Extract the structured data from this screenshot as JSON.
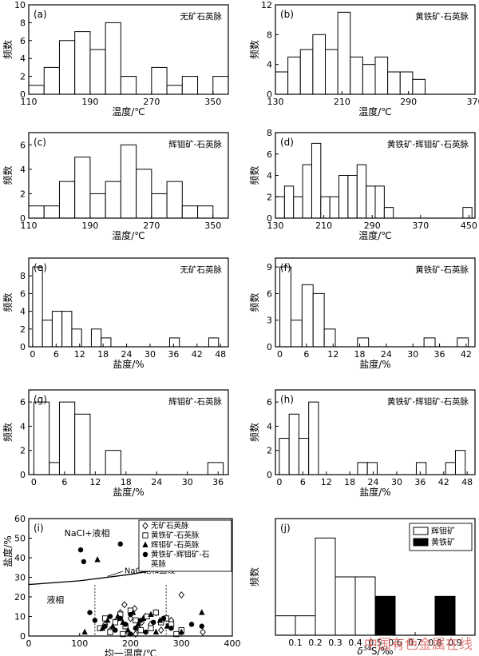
{
  "watermark": "中国有色金属在线",
  "chart_data": [
    {
      "panel": "(a)",
      "type": "bar",
      "title": "无矿石英脉",
      "xlabel": "温度/℃",
      "ylabel": "频数",
      "xlim": [
        110,
        370
      ],
      "ylim": [
        0,
        10
      ],
      "xticks": [
        110,
        190,
        270,
        350
      ],
      "yticks": [
        0,
        2,
        4,
        6,
        8,
        10
      ],
      "bins": [
        {
          "x0": 110,
          "x1": 130,
          "count": 1
        },
        {
          "x0": 130,
          "x1": 150,
          "count": 3
        },
        {
          "x0": 150,
          "x1": 170,
          "count": 6
        },
        {
          "x0": 170,
          "x1": 190,
          "count": 7
        },
        {
          "x0": 190,
          "x1": 210,
          "count": 5
        },
        {
          "x0": 210,
          "x1": 230,
          "count": 8
        },
        {
          "x0": 230,
          "x1": 250,
          "count": 2
        },
        {
          "x0": 270,
          "x1": 290,
          "count": 3
        },
        {
          "x0": 290,
          "x1": 310,
          "count": 1
        },
        {
          "x0": 310,
          "x1": 330,
          "count": 2
        },
        {
          "x0": 350,
          "x1": 370,
          "count": 2
        }
      ]
    },
    {
      "panel": "(b)",
      "type": "bar",
      "title": "黄铁矿-石英脉",
      "xlabel": "温度/℃",
      "ylabel": "频数",
      "xlim": [
        130,
        370
      ],
      "ylim": [
        0,
        12
      ],
      "xticks": [
        130,
        210,
        290,
        370
      ],
      "yticks": [
        0,
        4,
        8,
        12
      ],
      "bins": [
        {
          "x0": 130,
          "x1": 145,
          "count": 3
        },
        {
          "x0": 145,
          "x1": 160,
          "count": 5
        },
        {
          "x0": 160,
          "x1": 175,
          "count": 6
        },
        {
          "x0": 175,
          "x1": 190,
          "count": 8
        },
        {
          "x0": 190,
          "x1": 205,
          "count": 6
        },
        {
          "x0": 205,
          "x1": 220,
          "count": 11
        },
        {
          "x0": 220,
          "x1": 235,
          "count": 5
        },
        {
          "x0": 235,
          "x1": 250,
          "count": 4
        },
        {
          "x0": 250,
          "x1": 265,
          "count": 5
        },
        {
          "x0": 265,
          "x1": 280,
          "count": 3
        },
        {
          "x0": 280,
          "x1": 295,
          "count": 3
        },
        {
          "x0": 295,
          "x1": 310,
          "count": 2
        }
      ]
    },
    {
      "panel": "(c)",
      "type": "bar",
      "title": "辉钼矿-石英脉",
      "xlabel": "温度/℃",
      "ylabel": "频数",
      "xlim": [
        110,
        370
      ],
      "ylim": [
        0,
        7
      ],
      "xticks": [
        110,
        190,
        270,
        350
      ],
      "yticks": [
        0,
        2,
        4,
        6
      ],
      "bins": [
        {
          "x0": 110,
          "x1": 130,
          "count": 1
        },
        {
          "x0": 130,
          "x1": 150,
          "count": 1
        },
        {
          "x0": 150,
          "x1": 170,
          "count": 3
        },
        {
          "x0": 170,
          "x1": 190,
          "count": 5
        },
        {
          "x0": 190,
          "x1": 210,
          "count": 2
        },
        {
          "x0": 210,
          "x1": 230,
          "count": 3
        },
        {
          "x0": 230,
          "x1": 250,
          "count": 6
        },
        {
          "x0": 250,
          "x1": 270,
          "count": 4
        },
        {
          "x0": 270,
          "x1": 290,
          "count": 2
        },
        {
          "x0": 290,
          "x1": 310,
          "count": 3
        },
        {
          "x0": 310,
          "x1": 330,
          "count": 1
        },
        {
          "x0": 330,
          "x1": 350,
          "count": 1
        }
      ]
    },
    {
      "panel": "(d)",
      "type": "bar",
      "title": "黄铁矿-辉钼矿-石英脉",
      "xlabel": "温度/℃",
      "ylabel": "频数",
      "xlim": [
        130,
        460
      ],
      "ylim": [
        0,
        8
      ],
      "xticks": [
        130,
        210,
        290,
        370,
        450
      ],
      "yticks": [
        0,
        2,
        4,
        6,
        8
      ],
      "bins": [
        {
          "x0": 130,
          "x1": 145,
          "count": 2
        },
        {
          "x0": 145,
          "x1": 160,
          "count": 3
        },
        {
          "x0": 160,
          "x1": 175,
          "count": 2
        },
        {
          "x0": 175,
          "x1": 190,
          "count": 5
        },
        {
          "x0": 190,
          "x1": 205,
          "count": 7
        },
        {
          "x0": 205,
          "x1": 220,
          "count": 2
        },
        {
          "x0": 220,
          "x1": 235,
          "count": 2
        },
        {
          "x0": 235,
          "x1": 250,
          "count": 4
        },
        {
          "x0": 250,
          "x1": 265,
          "count": 4
        },
        {
          "x0": 265,
          "x1": 280,
          "count": 5
        },
        {
          "x0": 280,
          "x1": 295,
          "count": 3
        },
        {
          "x0": 295,
          "x1": 310,
          "count": 3
        },
        {
          "x0": 310,
          "x1": 325,
          "count": 1
        },
        {
          "x0": 440,
          "x1": 455,
          "count": 1
        }
      ]
    },
    {
      "panel": "(e)",
      "type": "bar",
      "title": "无矿石英脉",
      "xlabel": "盐度/%",
      "ylabel": "频数",
      "xlim": [
        -1,
        50
      ],
      "ylim": [
        0,
        10
      ],
      "xticks": [
        0,
        6,
        12,
        18,
        24,
        30,
        36,
        42,
        48
      ],
      "yticks": [
        0,
        2,
        4,
        6,
        8
      ],
      "bins": [
        {
          "x0": 0,
          "x1": 2.5,
          "count": 9
        },
        {
          "x0": 2.5,
          "x1": 5,
          "count": 3
        },
        {
          "x0": 5,
          "x1": 7.5,
          "count": 4
        },
        {
          "x0": 7.5,
          "x1": 10,
          "count": 4
        },
        {
          "x0": 10,
          "x1": 12.5,
          "count": 2
        },
        {
          "x0": 15,
          "x1": 17.5,
          "count": 2
        },
        {
          "x0": 17.5,
          "x1": 20,
          "count": 1
        },
        {
          "x0": 35,
          "x1": 37.5,
          "count": 1
        },
        {
          "x0": 45,
          "x1": 47.5,
          "count": 1
        }
      ]
    },
    {
      "panel": "(f)",
      "type": "bar",
      "title": "黄铁矿-石英脉",
      "xlabel": "盐度/%",
      "ylabel": "频数",
      "xlim": [
        -1,
        44
      ],
      "ylim": [
        0,
        10
      ],
      "xticks": [
        0,
        6,
        12,
        18,
        24,
        30,
        36,
        42
      ],
      "yticks": [
        0,
        3,
        6,
        9
      ],
      "bins": [
        {
          "x0": 0,
          "x1": 2.5,
          "count": 9
        },
        {
          "x0": 2.5,
          "x1": 5,
          "count": 3
        },
        {
          "x0": 5,
          "x1": 7.5,
          "count": 7
        },
        {
          "x0": 7.5,
          "x1": 10,
          "count": 6
        },
        {
          "x0": 10,
          "x1": 12.5,
          "count": 2
        },
        {
          "x0": 17.5,
          "x1": 20,
          "count": 1
        },
        {
          "x0": 32.5,
          "x1": 35,
          "count": 1
        },
        {
          "x0": 40,
          "x1": 42.5,
          "count": 1
        }
      ]
    },
    {
      "panel": "(g)",
      "type": "bar",
      "title": "辉钼矿-石英脉",
      "xlabel": "盐度/%",
      "ylabel": "频数",
      "xlim": [
        -1,
        38
      ],
      "ylim": [
        0,
        7
      ],
      "xticks": [
        0,
        6,
        12,
        18,
        24,
        30,
        36
      ],
      "yticks": [
        0,
        2,
        4,
        6
      ],
      "bins": [
        {
          "x0": 0,
          "x1": 3,
          "count": 6
        },
        {
          "x0": 3,
          "x1": 5,
          "count": 1
        },
        {
          "x0": 5,
          "x1": 8,
          "count": 6
        },
        {
          "x0": 8,
          "x1": 11,
          "count": 5
        },
        {
          "x0": 14,
          "x1": 17,
          "count": 2
        },
        {
          "x0": 34,
          "x1": 37,
          "count": 1
        }
      ]
    },
    {
      "panel": "(h)",
      "type": "bar",
      "title": "黄铁矿-辉钼矿-石英脉",
      "xlabel": "盐度/%",
      "ylabel": "频数",
      "xlim": [
        -1,
        50
      ],
      "ylim": [
        0,
        7
      ],
      "xticks": [
        0,
        6,
        12,
        18,
        24,
        30,
        36,
        42,
        48
      ],
      "yticks": [
        0,
        2,
        4,
        6
      ],
      "bins": [
        {
          "x0": 0,
          "x1": 2.5,
          "count": 3
        },
        {
          "x0": 2.5,
          "x1": 5,
          "count": 5
        },
        {
          "x0": 5,
          "x1": 7.5,
          "count": 3
        },
        {
          "x0": 7.5,
          "x1": 10,
          "count": 6
        },
        {
          "x0": 20,
          "x1": 22.5,
          "count": 1
        },
        {
          "x0": 22.5,
          "x1": 25,
          "count": 1
        },
        {
          "x0": 35,
          "x1": 37.5,
          "count": 1
        },
        {
          "x0": 42.5,
          "x1": 45,
          "count": 1
        },
        {
          "x0": 45,
          "x1": 47.5,
          "count": 2
        }
      ]
    },
    {
      "panel": "(i)",
      "type": "scatter",
      "xlabel": "均一温度/℃",
      "ylabel": "盐度/%",
      "xlim": [
        0,
        400
      ],
      "ylim": [
        0,
        60
      ],
      "xticks": [
        0,
        100,
        200,
        300,
        400
      ],
      "yticks": [
        0,
        10,
        20,
        30,
        40,
        50,
        60
      ],
      "annotations": {
        "vapor_field": "NaCl+液相",
        "liquid_field": "液相",
        "curve": "NaCl饱和曲线"
      },
      "saturation_curve": [
        [
          0,
          26.3
        ],
        [
          100,
          28.2
        ],
        [
          200,
          31.5
        ],
        [
          300,
          36.0
        ],
        [
          400,
          41.5
        ]
      ],
      "dashed_lines_x": [
        130,
        270
      ],
      "legend": {
        "items": [
          "无矿石英脉",
          "黄铁矿-石英脉",
          "辉钼矿-石英脉",
          "黄铁矿-辉钼矿-石英脉"
        ]
      },
      "series": [
        {
          "name": "无矿石英脉",
          "marker": "diamond",
          "points": [
            [
              150,
              6
            ],
            [
              160,
              3
            ],
            [
              172,
              8
            ],
            [
              180,
              12
            ],
            [
              190,
              5
            ],
            [
              200,
              9
            ],
            [
              208,
              14
            ],
            [
              215,
              4
            ],
            [
              222,
              7
            ],
            [
              230,
              10
            ],
            [
              240,
              6
            ],
            [
              250,
              12
            ],
            [
              260,
              3
            ],
            [
              280,
              8
            ],
            [
              300,
              21
            ],
            [
              342,
              2
            ],
            [
              235,
              38
            ],
            [
              195,
              2
            ],
            [
              188,
              16
            ],
            [
              210,
              1
            ]
          ]
        },
        {
          "name": "黄铁矿-石英脉",
          "marker": "square",
          "points": [
            [
              140,
              4
            ],
            [
              150,
              9
            ],
            [
              160,
              2
            ],
            [
              170,
              7
            ],
            [
              180,
              11
            ],
            [
              190,
              5
            ],
            [
              200,
              13
            ],
            [
              210,
              8
            ],
            [
              220,
              3
            ],
            [
              225,
              57
            ],
            [
              228,
              39
            ],
            [
              232,
              10
            ],
            [
              240,
              4
            ],
            [
              250,
              12
            ],
            [
              260,
              7
            ],
            [
              270,
              9
            ],
            [
              280,
              6
            ],
            [
              290,
              1
            ],
            [
              300,
              3
            ],
            [
              185,
              1
            ]
          ]
        },
        {
          "name": "辉钼矿-石英脉",
          "marker": "triangle",
          "points": [
            [
              110,
              2
            ],
            [
              135,
              39
            ],
            [
              145,
              4
            ],
            [
              155,
              8
            ],
            [
              165,
              5
            ],
            [
              175,
              10
            ],
            [
              185,
              7
            ],
            [
              195,
              3
            ],
            [
              205,
              12
            ],
            [
              215,
              6
            ],
            [
              225,
              9
            ],
            [
              240,
              11
            ],
            [
              250,
              2
            ],
            [
              258,
              8
            ],
            [
              272,
              5
            ],
            [
              340,
              12
            ],
            [
              300,
              2
            ]
          ]
        },
        {
          "name": "黄铁矿-辉钼矿-石英脉",
          "marker": "circle",
          "points": [
            [
              102,
              44
            ],
            [
              108,
              38
            ],
            [
              180,
              47
            ],
            [
              120,
              12
            ],
            [
              130,
              8
            ],
            [
              150,
              5
            ],
            [
              160,
              10
            ],
            [
              170,
              3
            ],
            [
              180,
              9
            ],
            [
              190,
              6
            ],
            [
              200,
              11
            ],
            [
              210,
              4
            ],
            [
              220,
              8
            ],
            [
              230,
              2
            ],
            [
              245,
              7
            ],
            [
              265,
              9
            ],
            [
              280,
              4
            ],
            [
              320,
              6
            ],
            [
              340,
              5
            ],
            [
              200,
              1
            ]
          ]
        }
      ]
    },
    {
      "panel": "(j)",
      "type": "bar",
      "xlabel": "δ34S/‰",
      "ylabel": "频数",
      "xlim": [
        0,
        1
      ],
      "ylim": [
        0,
        6
      ],
      "xticks": [
        0.1,
        0.2,
        0.3,
        0.4,
        0.5,
        0.6,
        0.7,
        0.8,
        0.9
      ],
      "yticks": [],
      "legend": {
        "items": [
          "辉钼矿",
          "黄铁矿"
        ]
      },
      "bins": [
        {
          "x0": 0.0,
          "x1": 0.1,
          "count": 1,
          "series": "辉钼矿"
        },
        {
          "x0": 0.1,
          "x1": 0.2,
          "count": 1,
          "series": "辉钼矿"
        },
        {
          "x0": 0.2,
          "x1": 0.3,
          "count": 5,
          "series": "辉钼矿"
        },
        {
          "x0": 0.3,
          "x1": 0.4,
          "count": 3,
          "series": "辉钼矿"
        },
        {
          "x0": 0.4,
          "x1": 0.5,
          "count": 3,
          "series": "辉钼矿"
        },
        {
          "x0": 0.5,
          "x1": 0.6,
          "count": 2,
          "series": "黄铁矿"
        },
        {
          "x0": 0.8,
          "x1": 0.9,
          "count": 2,
          "series": "黄铁矿"
        }
      ]
    }
  ]
}
